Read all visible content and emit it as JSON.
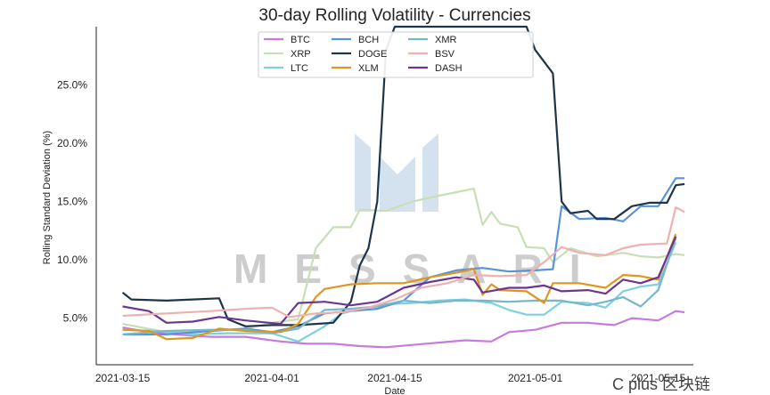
{
  "watermark": {
    "brand": "MESSARI",
    "footer": "C plus 区块链"
  },
  "chart_data": {
    "type": "line",
    "title": "30-day Rolling Volatility - Currencies",
    "xlabel": "Date",
    "ylabel": "Rolling Standard Deviation (%)",
    "x_ticks": [
      "2021-03-15",
      "2021-04-01",
      "2021-04-15",
      "2021-05-01",
      "2021-05-15"
    ],
    "y_ticks": [
      "5.0%",
      "10.0%",
      "15.0%",
      "20.0%",
      "25.0%"
    ],
    "xlim": [
      "2021-03-12",
      "2021-05-19"
    ],
    "ylim": [
      1.0,
      30.0
    ],
    "legend_position": "top-center",
    "series": [
      {
        "name": "BTC",
        "color": "#c77bdc",
        "points": [
          [
            "2021-03-15",
            4.2
          ],
          [
            "2021-03-18",
            3.8
          ],
          [
            "2021-03-21",
            3.6
          ],
          [
            "2021-03-25",
            3.4
          ],
          [
            "2021-03-29",
            3.4
          ],
          [
            "2021-04-02",
            3.0
          ],
          [
            "2021-04-05",
            2.8
          ],
          [
            "2021-04-08",
            2.8
          ],
          [
            "2021-04-11",
            2.6
          ],
          [
            "2021-04-14",
            2.5
          ],
          [
            "2021-04-17",
            2.7
          ],
          [
            "2021-04-20",
            2.9
          ],
          [
            "2021-04-23",
            3.1
          ],
          [
            "2021-04-26",
            3.0
          ],
          [
            "2021-04-28",
            3.8
          ],
          [
            "2021-05-01",
            4.0
          ],
          [
            "2021-05-04",
            4.6
          ],
          [
            "2021-05-07",
            4.6
          ],
          [
            "2021-05-10",
            4.4
          ],
          [
            "2021-05-12",
            5.0
          ],
          [
            "2021-05-15",
            4.8
          ],
          [
            "2021-05-17",
            5.6
          ],
          [
            "2021-05-18",
            5.5
          ]
        ]
      },
      {
        "name": "XRP",
        "color": "#c6dfb4",
        "points": [
          [
            "2021-03-15",
            4.5
          ],
          [
            "2021-03-20",
            3.8
          ],
          [
            "2021-03-25",
            3.9
          ],
          [
            "2021-03-29",
            4.1
          ],
          [
            "2021-04-01",
            4.6
          ],
          [
            "2021-04-04",
            4.9
          ],
          [
            "2021-04-06",
            11.0
          ],
          [
            "2021-04-08",
            12.8
          ],
          [
            "2021-04-10",
            12.8
          ],
          [
            "2021-04-11",
            14.3
          ],
          [
            "2021-04-14",
            14.2
          ],
          [
            "2021-04-17",
            15.0
          ],
          [
            "2021-04-20",
            15.5
          ],
          [
            "2021-04-24",
            16.1
          ],
          [
            "2021-04-25",
            13.0
          ],
          [
            "2021-04-26",
            14.1
          ],
          [
            "2021-04-27",
            13.1
          ],
          [
            "2021-04-29",
            12.8
          ],
          [
            "2021-04-30",
            11.1
          ],
          [
            "2021-05-02",
            11.0
          ],
          [
            "2021-05-03",
            9.8
          ],
          [
            "2021-05-05",
            11.0
          ],
          [
            "2021-05-08",
            10.3
          ],
          [
            "2021-05-11",
            10.6
          ],
          [
            "2021-05-13",
            10.3
          ],
          [
            "2021-05-15",
            10.2
          ],
          [
            "2021-05-17",
            10.5
          ],
          [
            "2021-05-18",
            10.4
          ]
        ]
      },
      {
        "name": "LTC",
        "color": "#7fd0de",
        "points": [
          [
            "2021-03-15",
            4.0
          ],
          [
            "2021-03-19",
            3.9
          ],
          [
            "2021-03-23",
            3.6
          ],
          [
            "2021-03-27",
            3.7
          ],
          [
            "2021-04-01",
            3.7
          ],
          [
            "2021-04-04",
            3.0
          ],
          [
            "2021-04-07",
            4.3
          ],
          [
            "2021-04-09",
            5.4
          ],
          [
            "2021-04-11",
            5.8
          ],
          [
            "2021-04-14",
            6.2
          ],
          [
            "2021-04-17",
            6.3
          ],
          [
            "2021-04-20",
            6.5
          ],
          [
            "2021-04-23",
            6.6
          ],
          [
            "2021-04-26",
            6.3
          ],
          [
            "2021-04-28",
            5.7
          ],
          [
            "2021-04-30",
            5.3
          ],
          [
            "2021-05-02",
            5.3
          ],
          [
            "2021-05-04",
            6.4
          ],
          [
            "2021-05-07",
            6.3
          ],
          [
            "2021-05-09",
            5.9
          ],
          [
            "2021-05-11",
            7.3
          ],
          [
            "2021-05-13",
            7.7
          ],
          [
            "2021-05-15",
            7.9
          ],
          [
            "2021-05-17",
            11.5
          ]
        ]
      },
      {
        "name": "BCH",
        "color": "#5b93d8",
        "points": [
          [
            "2021-03-15",
            3.6
          ],
          [
            "2021-03-20",
            3.6
          ],
          [
            "2021-03-25",
            3.9
          ],
          [
            "2021-03-29",
            4.1
          ],
          [
            "2021-04-01",
            3.8
          ],
          [
            "2021-04-04",
            4.3
          ],
          [
            "2021-04-07",
            5.4
          ],
          [
            "2021-04-10",
            5.6
          ],
          [
            "2021-04-13",
            5.8
          ],
          [
            "2021-04-16",
            6.5
          ],
          [
            "2021-04-19",
            8.5
          ],
          [
            "2021-04-22",
            9.1
          ],
          [
            "2021-04-25",
            9.3
          ],
          [
            "2021-04-28",
            9.0
          ],
          [
            "2021-05-01",
            9.1
          ],
          [
            "2021-05-03",
            9.2
          ],
          [
            "2021-05-04",
            14.6
          ],
          [
            "2021-05-06",
            13.5
          ],
          [
            "2021-05-09",
            13.6
          ],
          [
            "2021-05-11",
            13.3
          ],
          [
            "2021-05-13",
            14.6
          ],
          [
            "2021-05-15",
            14.6
          ],
          [
            "2021-05-17",
            17.0
          ],
          [
            "2021-05-18",
            17.0
          ]
        ]
      },
      {
        "name": "DOGE",
        "color": "#1e3549",
        "points": [
          [
            "2021-03-15",
            7.2
          ],
          [
            "2021-03-16",
            6.6
          ],
          [
            "2021-03-20",
            6.5
          ],
          [
            "2021-03-23",
            6.6
          ],
          [
            "2021-03-26",
            6.7
          ],
          [
            "2021-03-27",
            4.9
          ],
          [
            "2021-03-29",
            4.3
          ],
          [
            "2021-04-01",
            4.4
          ],
          [
            "2021-04-04",
            4.4
          ],
          [
            "2021-04-06",
            4.5
          ],
          [
            "2021-04-08",
            4.6
          ],
          [
            "2021-04-10",
            6.4
          ],
          [
            "2021-04-11",
            9.5
          ],
          [
            "2021-04-12",
            11.0
          ],
          [
            "2021-04-13",
            15.0
          ],
          [
            "2021-04-14",
            28.0
          ],
          [
            "2021-04-15",
            30.5
          ],
          [
            "2021-04-30",
            30.5
          ],
          [
            "2021-05-01",
            28.0
          ],
          [
            "2021-05-03",
            26.0
          ],
          [
            "2021-05-04",
            15.0
          ],
          [
            "2021-05-05",
            14.0
          ],
          [
            "2021-05-07",
            14.2
          ],
          [
            "2021-05-08",
            13.5
          ],
          [
            "2021-05-10",
            13.5
          ],
          [
            "2021-05-12",
            14.6
          ],
          [
            "2021-05-14",
            14.9
          ],
          [
            "2021-05-16",
            14.9
          ],
          [
            "2021-05-17",
            16.4
          ],
          [
            "2021-05-18",
            16.5
          ]
        ]
      },
      {
        "name": "XMR",
        "color": "#77b6cb",
        "points": [
          [
            "2021-03-15",
            3.6
          ],
          [
            "2021-03-20",
            3.9
          ],
          [
            "2021-03-25",
            4.0
          ],
          [
            "2021-03-29",
            4.0
          ],
          [
            "2021-04-01",
            3.7
          ],
          [
            "2021-04-04",
            4.1
          ],
          [
            "2021-04-07",
            5.7
          ],
          [
            "2021-04-10",
            5.8
          ],
          [
            "2021-04-13",
            6.0
          ],
          [
            "2021-04-16",
            6.5
          ],
          [
            "2021-04-19",
            6.3
          ],
          [
            "2021-04-22",
            6.5
          ],
          [
            "2021-04-25",
            6.5
          ],
          [
            "2021-04-28",
            6.4
          ],
          [
            "2021-05-01",
            6.5
          ],
          [
            "2021-05-04",
            6.5
          ],
          [
            "2021-05-07",
            6.1
          ],
          [
            "2021-05-09",
            6.4
          ],
          [
            "2021-05-11",
            6.8
          ],
          [
            "2021-05-13",
            6.0
          ],
          [
            "2021-05-15",
            7.4
          ],
          [
            "2021-05-17",
            11.9
          ]
        ]
      },
      {
        "name": "XLM",
        "color": "#e0961d",
        "points": [
          [
            "2021-03-15",
            4.0
          ],
          [
            "2021-03-18",
            3.9
          ],
          [
            "2021-03-20",
            3.2
          ],
          [
            "2021-03-23",
            3.3
          ],
          [
            "2021-03-26",
            4.1
          ],
          [
            "2021-03-29",
            3.9
          ],
          [
            "2021-04-02",
            3.8
          ],
          [
            "2021-04-04",
            4.5
          ],
          [
            "2021-04-06",
            6.8
          ],
          [
            "2021-04-07",
            7.5
          ],
          [
            "2021-04-10",
            7.9
          ],
          [
            "2021-04-13",
            8.0
          ],
          [
            "2021-04-16",
            8.0
          ],
          [
            "2021-04-19",
            8.5
          ],
          [
            "2021-04-22",
            8.9
          ],
          [
            "2021-04-24",
            9.2
          ],
          [
            "2021-04-25",
            7.0
          ],
          [
            "2021-04-26",
            7.9
          ],
          [
            "2021-04-27",
            7.4
          ],
          [
            "2021-04-30",
            7.3
          ],
          [
            "2021-05-02",
            6.3
          ],
          [
            "2021-05-03",
            8.0
          ],
          [
            "2021-05-06",
            8.0
          ],
          [
            "2021-05-09",
            7.6
          ],
          [
            "2021-05-11",
            8.7
          ],
          [
            "2021-05-13",
            8.6
          ],
          [
            "2021-05-15",
            8.3
          ],
          [
            "2021-05-17",
            12.2
          ]
        ]
      },
      {
        "name": "DASH",
        "color": "#6d3591",
        "points": [
          [
            "2021-03-15",
            6.0
          ],
          [
            "2021-03-18",
            5.6
          ],
          [
            "2021-03-20",
            4.6
          ],
          [
            "2021-03-23",
            4.7
          ],
          [
            "2021-03-26",
            5.1
          ],
          [
            "2021-03-29",
            4.8
          ],
          [
            "2021-04-02",
            4.5
          ],
          [
            "2021-04-04",
            6.3
          ],
          [
            "2021-04-07",
            6.4
          ],
          [
            "2021-04-10",
            6.1
          ],
          [
            "2021-04-13",
            6.4
          ],
          [
            "2021-04-16",
            7.6
          ],
          [
            "2021-04-19",
            8.1
          ],
          [
            "2021-04-22",
            8.5
          ],
          [
            "2021-04-24",
            8.3
          ],
          [
            "2021-04-25",
            7.2
          ],
          [
            "2021-04-28",
            7.6
          ],
          [
            "2021-04-30",
            7.6
          ],
          [
            "2021-05-02",
            7.8
          ],
          [
            "2021-05-04",
            7.3
          ],
          [
            "2021-05-07",
            7.4
          ],
          [
            "2021-05-09",
            7.1
          ],
          [
            "2021-05-11",
            8.3
          ],
          [
            "2021-05-13",
            8.0
          ],
          [
            "2021-05-15",
            8.5
          ],
          [
            "2021-05-17",
            12.0
          ]
        ]
      },
      {
        "name": "BSV",
        "color": "#eeb0b0",
        "points": [
          [
            "2021-03-15",
            5.2
          ],
          [
            "2021-03-20",
            5.4
          ],
          [
            "2021-03-25",
            5.6
          ],
          [
            "2021-03-29",
            5.8
          ],
          [
            "2021-04-01",
            5.9
          ],
          [
            "2021-04-03",
            5.1
          ],
          [
            "2021-04-06",
            5.4
          ],
          [
            "2021-04-09",
            5.5
          ],
          [
            "2021-04-12",
            5.9
          ],
          [
            "2021-04-15",
            6.6
          ],
          [
            "2021-04-18",
            7.6
          ],
          [
            "2021-04-21",
            8.0
          ],
          [
            "2021-04-24",
            8.7
          ],
          [
            "2021-04-27",
            8.6
          ],
          [
            "2021-04-30",
            8.7
          ],
          [
            "2021-05-02",
            9.8
          ],
          [
            "2021-05-04",
            11.1
          ],
          [
            "2021-05-06",
            10.6
          ],
          [
            "2021-05-09",
            10.4
          ],
          [
            "2021-05-11",
            11.0
          ],
          [
            "2021-05-13",
            11.3
          ],
          [
            "2021-05-16",
            11.4
          ],
          [
            "2021-05-17",
            14.5
          ],
          [
            "2021-05-18",
            14.1
          ]
        ]
      }
    ]
  }
}
